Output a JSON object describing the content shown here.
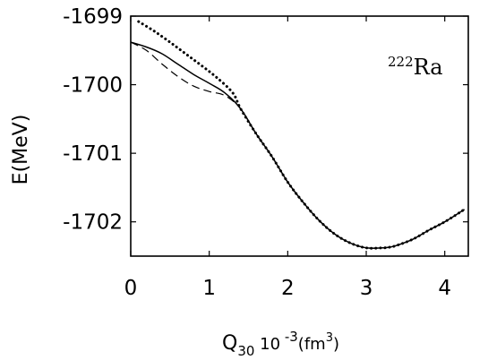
{
  "chart_data": {
    "type": "line",
    "xlabel": {
      "main": "Q",
      "sub": "30",
      "mid": " 10",
      "sup1": " -3",
      "unit": "(fm",
      "sup2": "3",
      "close": ")"
    },
    "ylabel": "E(MeV)",
    "xlim": [
      0,
      4.3
    ],
    "ylim": [
      -1702.5,
      -1699
    ],
    "x_ticks": [
      0,
      1,
      2,
      3,
      4
    ],
    "x_tick_labels": [
      "0",
      "1",
      "2",
      "3",
      "4"
    ],
    "y_ticks": [
      -1699,
      -1700,
      -1701,
      -1702
    ],
    "y_tick_labels": [
      "-1699",
      "-1700",
      "-1701",
      "-1702"
    ],
    "annotation": {
      "sup": "222",
      "text": "Ra"
    },
    "grid": false,
    "series": [
      {
        "style": "solid",
        "x": [
          0.0,
          0.2,
          0.4,
          0.6,
          0.8,
          1.0,
          1.2,
          1.4,
          1.6,
          1.8,
          2.0,
          2.2,
          2.4,
          2.6,
          2.8,
          3.0,
          3.2,
          3.3,
          3.4,
          3.6,
          3.8,
          4.0,
          4.25
        ],
        "y": [
          -1699.38,
          -1699.45,
          -1699.55,
          -1699.7,
          -1699.85,
          -1699.98,
          -1700.12,
          -1700.35,
          -1700.72,
          -1701.05,
          -1701.42,
          -1701.72,
          -1701.98,
          -1702.18,
          -1702.31,
          -1702.38,
          -1702.38,
          -1702.37,
          -1702.34,
          -1702.25,
          -1702.12,
          -1702.0,
          -1701.82
        ]
      },
      {
        "style": "dashed",
        "x": [
          0.0,
          0.2,
          0.4,
          0.6,
          0.8,
          1.0,
          1.2,
          1.4,
          1.6,
          1.8,
          2.0,
          2.2,
          2.4,
          2.6,
          2.8,
          3.0,
          3.2,
          3.3,
          3.4,
          3.6,
          3.8,
          4.0,
          4.25
        ],
        "y": [
          -1699.38,
          -1699.5,
          -1699.7,
          -1699.88,
          -1700.02,
          -1700.1,
          -1700.16,
          -1700.35,
          -1700.72,
          -1701.05,
          -1701.42,
          -1701.72,
          -1701.98,
          -1702.18,
          -1702.31,
          -1702.38,
          -1702.38,
          -1702.37,
          -1702.34,
          -1702.25,
          -1702.12,
          -1702.0,
          -1701.82
        ]
      },
      {
        "style": "dotted",
        "x": [
          0.1,
          0.3,
          0.5,
          0.7,
          0.9,
          1.1,
          1.3,
          1.4,
          1.6,
          1.8,
          2.0,
          2.2,
          2.4,
          2.6,
          2.8,
          3.0,
          3.2,
          3.3,
          3.4,
          3.6,
          3.8,
          4.0,
          4.25
        ],
        "y": [
          -1699.08,
          -1699.22,
          -1699.38,
          -1699.55,
          -1699.72,
          -1699.9,
          -1700.12,
          -1700.35,
          -1700.72,
          -1701.05,
          -1701.42,
          -1701.72,
          -1701.98,
          -1702.18,
          -1702.31,
          -1702.38,
          -1702.38,
          -1702.37,
          -1702.34,
          -1702.25,
          -1702.12,
          -1702.0,
          -1701.82
        ]
      }
    ]
  }
}
